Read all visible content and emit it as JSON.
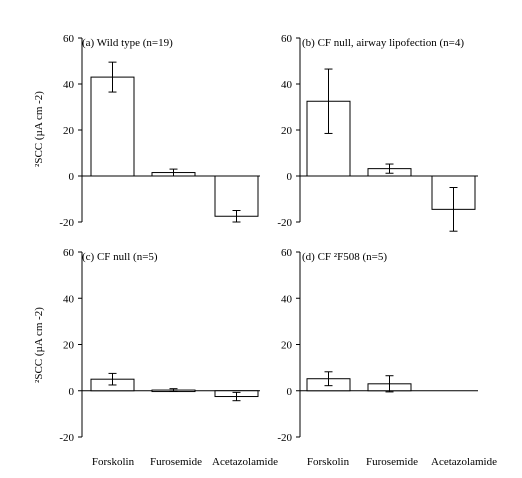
{
  "colors": {
    "bar_fill": "#ffffff",
    "stroke": "#000000",
    "background": "#ffffff"
  },
  "category_labels": [
    "Forskolin",
    "Furosemide",
    "Acetazolamide"
  ],
  "chart_data": [
    {
      "type": "bar",
      "title": "(a) Wild type (n=19)",
      "ylabel": "²SCC (µA cm -2)",
      "ylim": [
        -20,
        60
      ],
      "yticks": [
        "-20",
        "0",
        "20",
        "40",
        "60"
      ],
      "categories": [
        "Forskolin",
        "Furosemide",
        "Acetazolamide"
      ],
      "values": [
        43,
        1.5,
        -17.5
      ],
      "errors": [
        6.5,
        1.5,
        2.5
      ]
    },
    {
      "type": "bar",
      "title": "(b) CF null, airway lipofection (n=4)",
      "ylabel": "",
      "ylim": [
        -20,
        60
      ],
      "yticks": [
        "-20",
        "0",
        "20",
        "40",
        "60"
      ],
      "categories": [
        "Forskolin",
        "Furosemide",
        "Acetazolamide"
      ],
      "values": [
        32.5,
        3.2,
        -14.5
      ],
      "errors": [
        14,
        2,
        9.5
      ]
    },
    {
      "type": "bar",
      "title": "(c) CF null (n=5)",
      "ylabel": "²SCC (µA cm -2)",
      "ylim": [
        -20,
        60
      ],
      "yticks": [
        "-20",
        "0",
        "20",
        "40",
        "60"
      ],
      "categories": [
        "Forskolin",
        "Furosemide",
        "Acetazolamide"
      ],
      "values": [
        5,
        0.3,
        -2.5
      ],
      "errors": [
        2.5,
        0.6,
        1.8
      ]
    },
    {
      "type": "bar",
      "title": "(d) CF ²F508 (n=5)",
      "ylabel": "",
      "ylim": [
        -20,
        60
      ],
      "yticks": [
        "-20",
        "0",
        "20",
        "40",
        "60"
      ],
      "categories": [
        "Forskolin",
        "Furosemide",
        "Acetazolamide"
      ],
      "values": [
        5.2,
        3,
        null
      ],
      "errors": [
        3,
        3.5,
        null
      ]
    }
  ]
}
